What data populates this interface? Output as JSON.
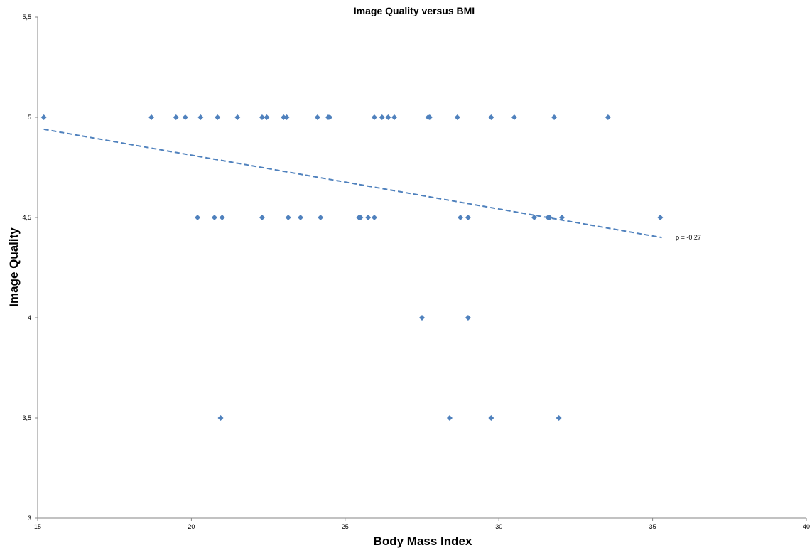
{
  "chart_data": {
    "type": "scatter",
    "title": "Image Quality versus BMI",
    "xlabel": "Body Mass Index",
    "ylabel": "Image Quality",
    "xlim": [
      15,
      40
    ],
    "ylim": [
      3,
      5.5
    ],
    "x_ticks": [
      15,
      20,
      25,
      30,
      35,
      40
    ],
    "x_tick_labels": [
      "15",
      "20",
      "25",
      "30",
      "35",
      "40"
    ],
    "y_ticks": [
      3,
      3.5,
      4,
      4.5,
      5,
      5.5
    ],
    "y_tick_labels": [
      "3",
      "3,5",
      "4",
      "4,5",
      "5",
      "5,5"
    ],
    "grid": false,
    "legend": false,
    "marker": "diamond",
    "color": "#4f81bd",
    "series": [
      {
        "points": [
          [
            15.2,
            5
          ],
          [
            18.7,
            5
          ],
          [
            19.5,
            5
          ],
          [
            19.8,
            5
          ],
          [
            20.3,
            5
          ],
          [
            20.85,
            5
          ],
          [
            21.5,
            5
          ],
          [
            22.3,
            5
          ],
          [
            22.45,
            5
          ],
          [
            23.0,
            5
          ],
          [
            23.1,
            5
          ],
          [
            24.1,
            5
          ],
          [
            24.45,
            5
          ],
          [
            24.5,
            5
          ],
          [
            25.95,
            5
          ],
          [
            26.2,
            5
          ],
          [
            26.4,
            5
          ],
          [
            26.6,
            5
          ],
          [
            27.7,
            5
          ],
          [
            27.75,
            5
          ],
          [
            28.65,
            5
          ],
          [
            29.75,
            5
          ],
          [
            30.5,
            5
          ],
          [
            31.8,
            5
          ],
          [
            33.55,
            5
          ],
          [
            20.2,
            4.5
          ],
          [
            20.75,
            4.5
          ],
          [
            21.0,
            4.5
          ],
          [
            22.3,
            4.5
          ],
          [
            23.15,
            4.5
          ],
          [
            23.55,
            4.5
          ],
          [
            24.2,
            4.5
          ],
          [
            25.45,
            4.5
          ],
          [
            25.5,
            4.5
          ],
          [
            25.75,
            4.5
          ],
          [
            25.95,
            4.5
          ],
          [
            28.75,
            4.5
          ],
          [
            29.0,
            4.5
          ],
          [
            31.15,
            4.5
          ],
          [
            31.6,
            4.5
          ],
          [
            31.65,
            4.5
          ],
          [
            32.05,
            4.5
          ],
          [
            35.25,
            4.5
          ],
          [
            27.5,
            4
          ],
          [
            29.0,
            4
          ],
          [
            20.95,
            3.5
          ],
          [
            28.4,
            3.5
          ],
          [
            29.75,
            3.5
          ],
          [
            31.95,
            3.5
          ]
        ]
      }
    ],
    "trendline": {
      "style": "dashed",
      "color": "#4f81bd",
      "from": [
        15.2,
        4.94
      ],
      "to": [
        35.3,
        4.4
      ]
    },
    "annotations": [
      {
        "text": "ρ = -0,27",
        "x": 35.75,
        "y": 4.4
      }
    ]
  }
}
